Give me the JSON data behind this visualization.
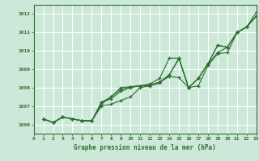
{
  "title": "Graphe pression niveau de la mer (hPa)",
  "background_color": "#cce8d8",
  "plot_bg_color": "#cce8d8",
  "grid_color": "#ffffff",
  "line_color": "#2d6e2d",
  "xlim": [
    0,
    23
  ],
  "ylim": [
    1005.5,
    1012.5
  ],
  "xticks": [
    0,
    1,
    2,
    3,
    4,
    5,
    6,
    7,
    8,
    9,
    10,
    11,
    12,
    13,
    14,
    15,
    16,
    17,
    18,
    19,
    20,
    21,
    22,
    23
  ],
  "yticks": [
    1006,
    1007,
    1008,
    1009,
    1010,
    1011,
    1012
  ],
  "series": [
    [
      1006.3,
      1006.1,
      1006.4,
      1006.3,
      1006.2,
      1006.2,
      1007.0,
      1007.1,
      1007.3,
      1007.5,
      1008.0,
      1008.1,
      1008.3,
      1008.6,
      1008.55,
      1008.0,
      1008.1,
      1009.2,
      1009.85,
      1009.9,
      1011.0,
      1011.3,
      1011.9
    ],
    [
      1006.3,
      1006.1,
      1006.4,
      1006.3,
      1006.2,
      1006.2,
      1007.2,
      1007.4,
      1007.8,
      1008.0,
      1008.1,
      1008.1,
      1008.25,
      1008.7,
      1009.55,
      1008.0,
      1008.5,
      1009.3,
      1009.9,
      1010.2,
      1011.0,
      1011.3,
      1011.9
    ],
    [
      1006.3,
      1006.1,
      1006.4,
      1006.3,
      1006.2,
      1006.2,
      1007.2,
      1007.5,
      1008.0,
      1008.05,
      1008.1,
      1008.15,
      1008.3,
      1008.7,
      1009.6,
      1008.0,
      1008.5,
      1009.3,
      1010.3,
      1010.2,
      1011.0,
      1011.3,
      1011.9
    ],
    [
      1006.3,
      1006.1,
      1006.4,
      1006.3,
      1006.2,
      1006.2,
      1007.1,
      1007.5,
      1007.9,
      1008.05,
      1008.1,
      1008.2,
      1008.5,
      1009.6,
      1009.6,
      1008.0,
      1008.5,
      1009.3,
      1010.3,
      1010.2,
      1011.0,
      1011.3,
      1012.1
    ]
  ],
  "x": [
    1,
    2,
    3,
    4,
    5,
    6,
    7,
    8,
    9,
    10,
    11,
    12,
    13,
    14,
    15,
    16,
    17,
    18,
    19,
    20,
    21,
    22,
    23
  ],
  "ytick_labels": [
    "1006",
    "1007",
    "1008",
    "1009",
    "1010",
    "1011",
    "1012"
  ],
  "xtick_labels": [
    "0",
    "1",
    "2",
    "3",
    "4",
    "5",
    "6",
    "7",
    "8",
    "9",
    "10",
    "11",
    "12",
    "13",
    "14",
    "15",
    "16",
    "17",
    "18",
    "19",
    "20",
    "21",
    "22",
    "23"
  ]
}
